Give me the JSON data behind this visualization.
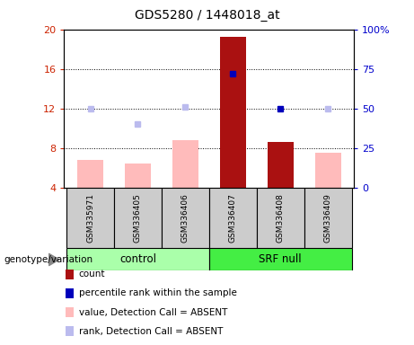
{
  "title": "GDS5280 / 1448018_at",
  "samples": [
    "GSM335971",
    "GSM336405",
    "GSM336406",
    "GSM336407",
    "GSM336408",
    "GSM336409"
  ],
  "ylim_left": [
    4,
    20
  ],
  "ylim_right": [
    0,
    100
  ],
  "yticks_left": [
    4,
    8,
    12,
    16,
    20
  ],
  "yticks_right": [
    0,
    25,
    50,
    75,
    100
  ],
  "ytick_labels_left": [
    "4",
    "8",
    "12",
    "16",
    "20"
  ],
  "ytick_labels_right": [
    "0",
    "25",
    "50",
    "75",
    "100%"
  ],
  "bar_values": [
    6.8,
    6.5,
    8.8,
    19.2,
    8.6,
    7.6
  ],
  "bar_colors": [
    "#ffbbbb",
    "#ffbbbb",
    "#ffbbbb",
    "#aa1111",
    "#aa1111",
    "#ffbbbb"
  ],
  "dot_values": [
    12.0,
    10.5,
    12.2,
    15.5,
    12.0,
    12.0
  ],
  "dot_colors": [
    "#bbbbee",
    "#bbbbee",
    "#bbbbee",
    "#0000bb",
    "#0000bb",
    "#bbbbee"
  ],
  "grid_yticks": [
    8,
    12,
    16
  ],
  "title_color": "#000000",
  "left_tick_color": "#cc2200",
  "right_tick_color": "#0000cc",
  "control_color": "#aaffaa",
  "srf_color": "#44ee44",
  "box_color": "#cccccc",
  "legend_items": [
    {
      "color": "#aa1111",
      "label": "count"
    },
    {
      "color": "#0000bb",
      "label": "percentile rank within the sample"
    },
    {
      "color": "#ffbbbb",
      "label": "value, Detection Call = ABSENT"
    },
    {
      "color": "#bbbbee",
      "label": "rank, Detection Call = ABSENT"
    }
  ]
}
